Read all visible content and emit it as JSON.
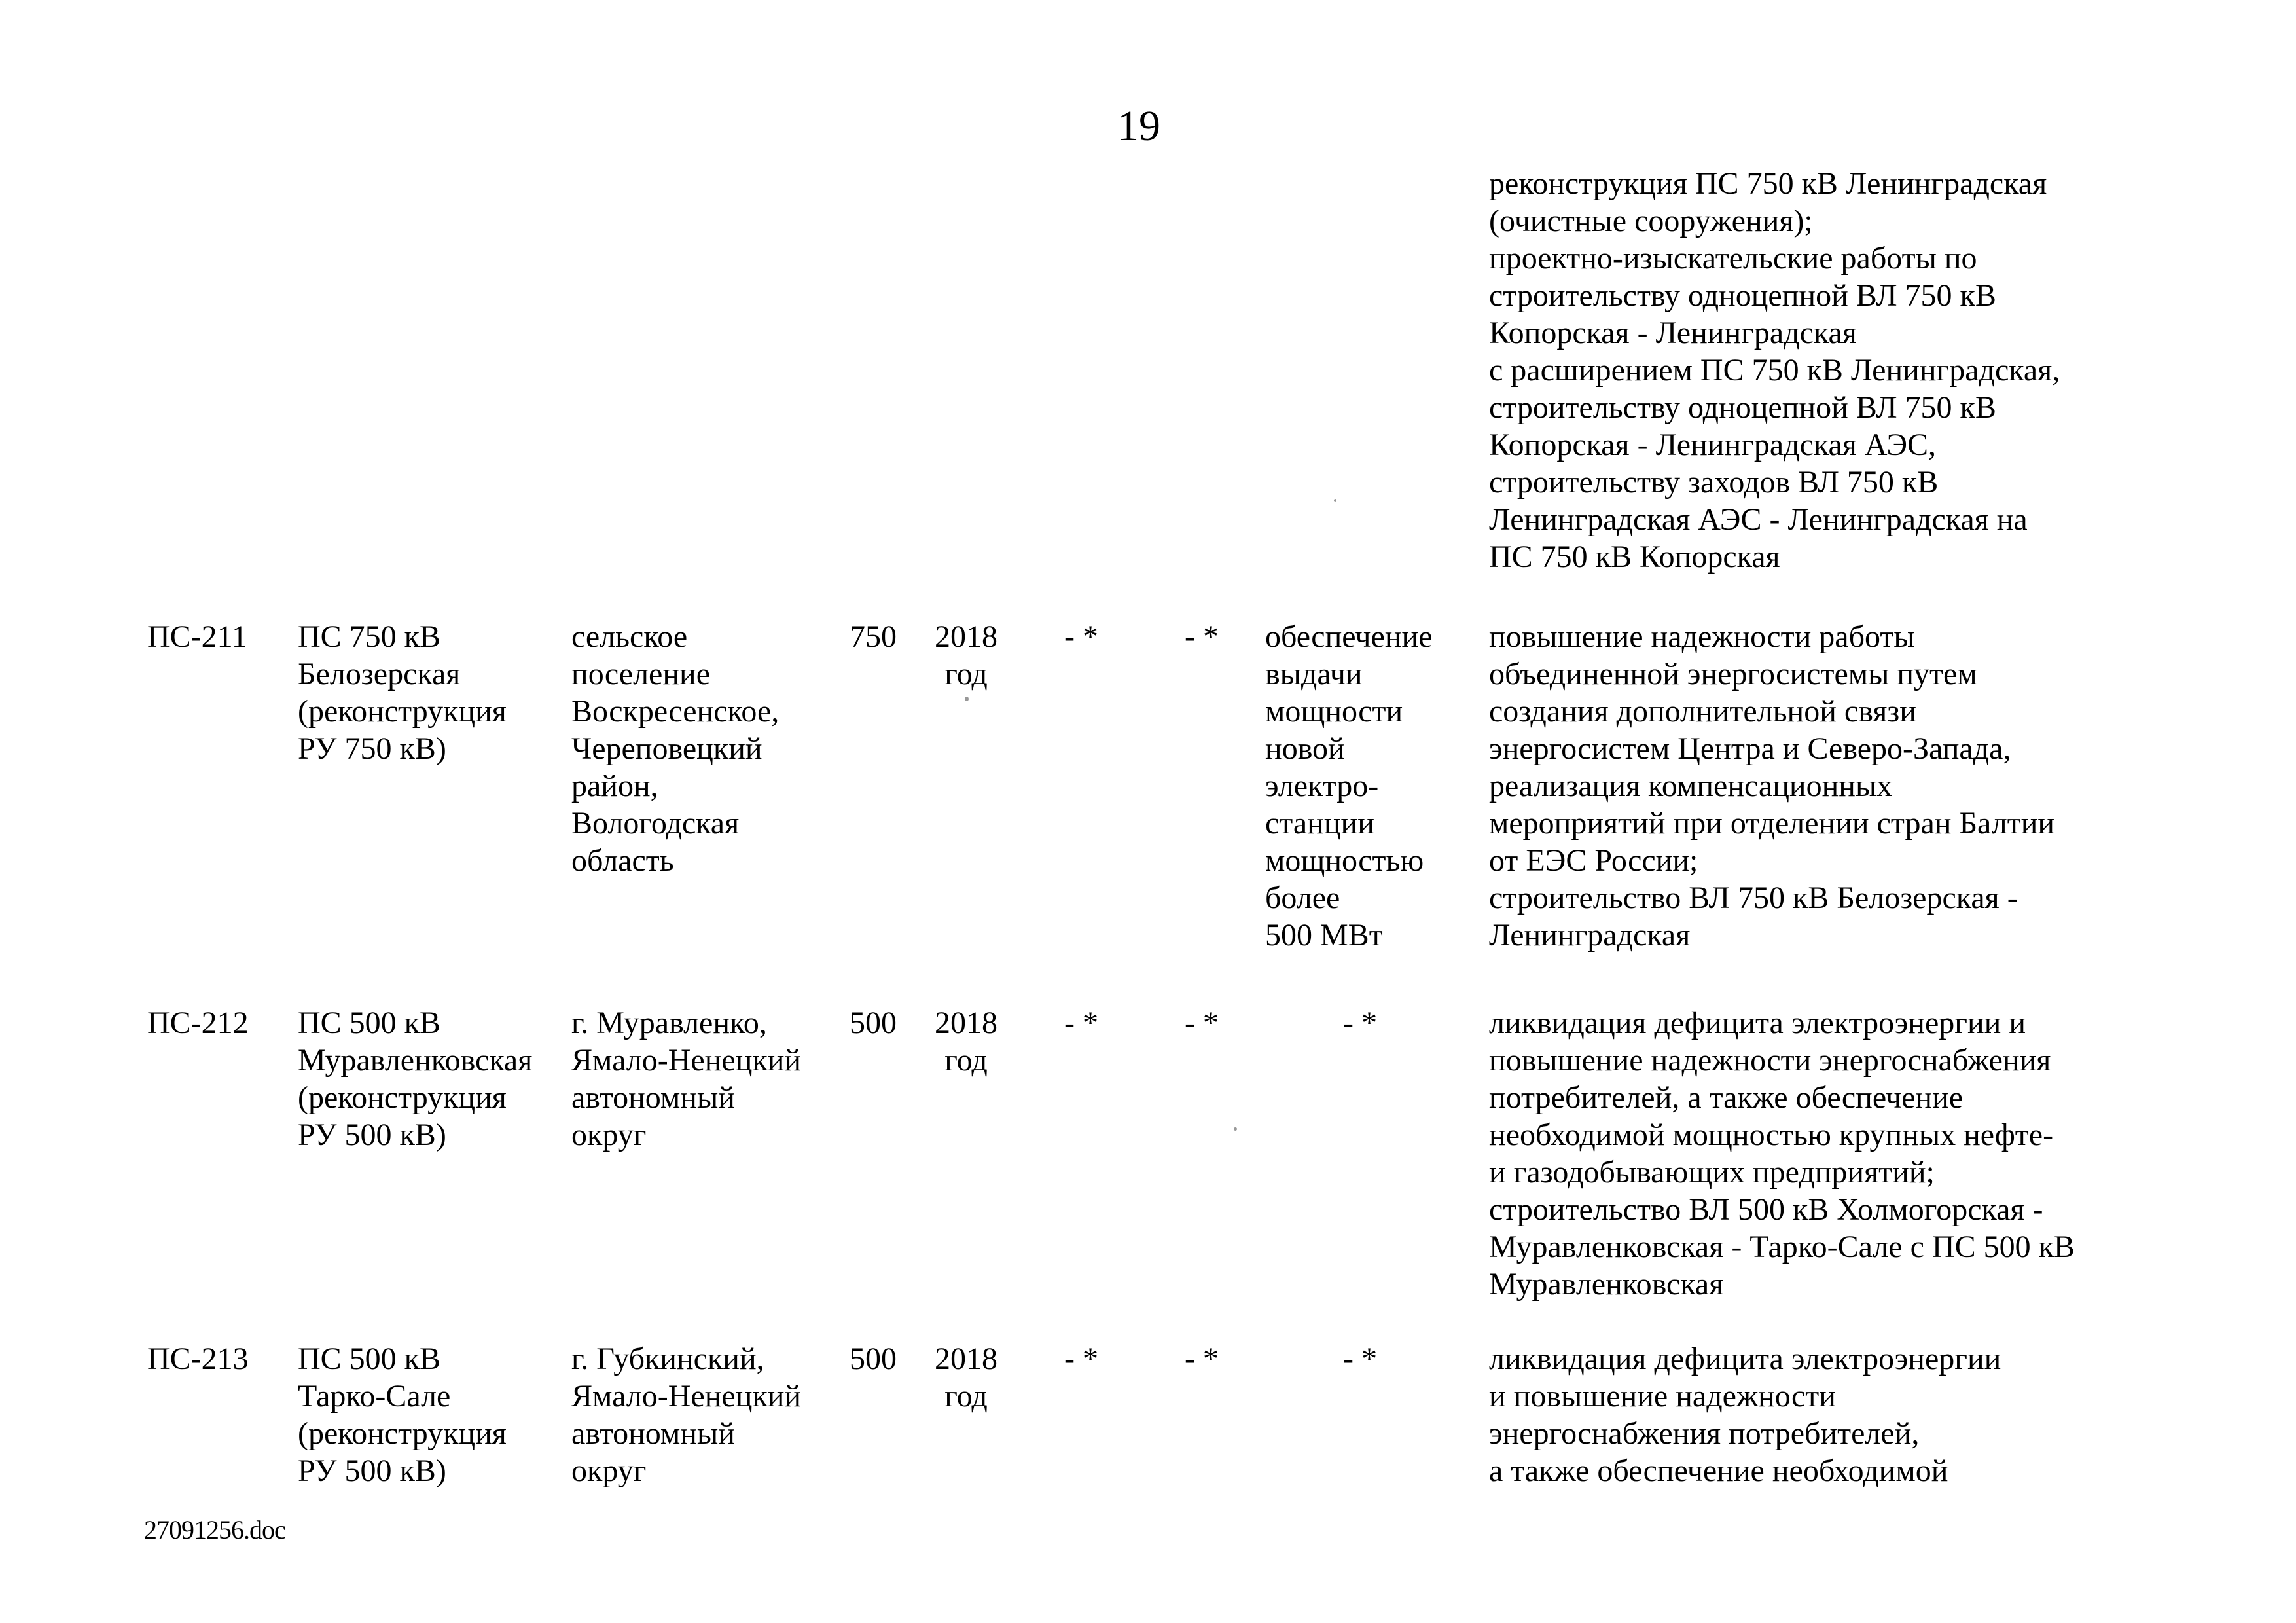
{
  "page": {
    "number": "19",
    "footer_doc": "27091256.doc"
  },
  "continued_note_lines": [
    "реконструкция ПС 750 кВ Ленинградская",
    "(очистные сооружения);",
    "проектно-изыскательские работы по",
    "строительству одноцепной ВЛ 750 кВ",
    "Копорская - Ленинградская",
    "с расширением ПС 750 кВ Ленинградская,",
    "строительству одноцепной ВЛ 750 кВ",
    "Копорская - Ленинградская АЭС,",
    "строительству заходов ВЛ 750 кВ",
    "Ленинградская АЭС - Ленинградская на",
    "ПС 750 кВ Копорская"
  ],
  "rows": [
    {
      "id": "ПС-211",
      "name_lines": [
        "ПС 750 кВ",
        "Белозерская",
        "(реконструкция",
        "РУ 750 кВ)"
      ],
      "location_lines": [
        "сельское",
        "поселение",
        "Воскресенское,",
        "Череповецкий",
        "район,",
        "Вологодская",
        "область"
      ],
      "voltage_kv": "750",
      "year_lines": [
        "2018",
        "год"
      ],
      "col_a": "- *",
      "col_b": "- *",
      "purpose_lines": [
        "обеспечение",
        "выдачи",
        "мощности",
        "новой",
        "электро-",
        "станции",
        "мощностью",
        "более",
        "500 МВт"
      ],
      "description_lines": [
        "повышение надежности работы",
        "объединенной энергосистемы путем",
        "создания дополнительной связи",
        "энергосистем Центра и Северо-Запада,",
        "реализация компенсационных",
        "мероприятий при отделении стран Балтии",
        "от ЕЭС России;",
        "строительство ВЛ 750 кВ Белозерская -",
        "Ленинградская"
      ]
    },
    {
      "id": "ПС-212",
      "name_lines": [
        "ПС 500 кВ",
        "Муравленковская",
        "(реконструкция",
        "РУ 500 кВ)"
      ],
      "location_lines": [
        "г. Муравленко,",
        "Ямало-Ненецкий",
        "автономный",
        "округ"
      ],
      "voltage_kv": "500",
      "year_lines": [
        "2018",
        "год"
      ],
      "col_a": "- *",
      "col_b": "- *",
      "purpose_lines": [
        "- *"
      ],
      "description_lines": [
        "ликвидация дефицита электроэнергии и",
        "повышение надежности энергоснабжения",
        "потребителей, а также обеспечение",
        "необходимой мощностью крупных нефте-",
        "и газодобывающих предприятий;",
        "строительство ВЛ 500 кВ Холмогорская -",
        "Муравленковская - Тарко-Сале с ПС 500 кВ",
        "Муравленковская"
      ]
    },
    {
      "id": "ПС-213",
      "name_lines": [
        "ПС 500 кВ",
        "Тарко-Сале",
        "(реконструкция",
        "РУ 500 кВ)"
      ],
      "location_lines": [
        "г. Губкинский,",
        "Ямало-Ненецкий",
        "автономный",
        "округ"
      ],
      "voltage_kv": "500",
      "year_lines": [
        "2018",
        "год"
      ],
      "col_a": "- *",
      "col_b": "- *",
      "purpose_lines": [
        "- *"
      ],
      "description_lines": [
        "ликвидация дефицита электроэнергии",
        "и повышение надежности",
        "энергоснабжения потребителей,",
        "а также обеспечение необходимой"
      ]
    }
  ]
}
